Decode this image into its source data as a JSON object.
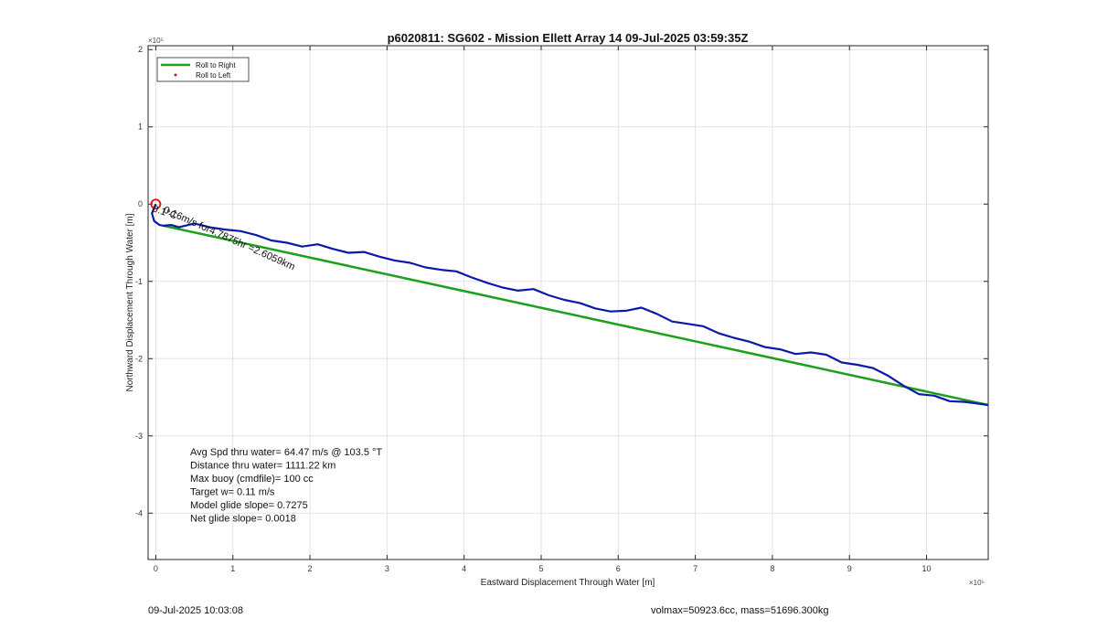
{
  "chart_data": {
    "type": "line",
    "title": "p6020811: SG602 - Mission Ellett Array 14 09-Jul-2025 03:59:35Z",
    "xlabel": "Eastward Displacement Through Water [m]",
    "ylabel": "Northward Displacement Through Water [m]",
    "xlim": [
      -0.1,
      10.8
    ],
    "ylim": [
      -4.6,
      2.05
    ],
    "axis_scale_exponent": "×10⁵",
    "x_exponent_label": "×10⁵",
    "y_exponent_label": "×10⁵",
    "x_ticks": [
      0,
      1,
      2,
      3,
      4,
      5,
      6,
      7,
      8,
      9,
      10
    ],
    "y_ticks": [
      2,
      1,
      0,
      -1,
      -2,
      -3,
      -4
    ],
    "grid": true,
    "legend_position": "top-left",
    "legend": [
      "Roll to Right",
      "Roll to Left"
    ],
    "series": [
      {
        "name": "Roll to Right",
        "color": "#1aa01a",
        "x": [
          0.1,
          10.8
        ],
        "y": [
          -0.28,
          -2.6
        ]
      },
      {
        "name": "Roll to Left",
        "color": "#e01010",
        "x": [
          0
        ],
        "y": [
          0
        ]
      },
      {
        "name": "",
        "color": "#0a1aa8",
        "x": [
          0,
          -0.05,
          -0.02,
          0.05,
          0.1,
          0.2,
          0.3,
          0.5,
          0.7,
          0.9,
          1.1,
          1.3,
          1.5,
          1.7,
          1.9,
          2.1,
          2.3,
          2.5,
          2.7,
          2.9,
          3.1,
          3.3,
          3.5,
          3.7,
          3.9,
          4.1,
          4.3,
          4.5,
          4.7,
          4.9,
          5.1,
          5.3,
          5.5,
          5.7,
          5.9,
          6.1,
          6.3,
          6.5,
          6.7,
          6.9,
          7.1,
          7.3,
          7.5,
          7.7,
          7.9,
          8.1,
          8.3,
          8.5,
          8.7,
          8.9,
          9.1,
          9.3,
          9.5,
          9.7,
          9.9,
          10.1,
          10.3,
          10.5,
          10.65,
          10.8
        ],
        "y": [
          0,
          -0.12,
          -0.22,
          -0.27,
          -0.28,
          -0.27,
          -0.3,
          -0.25,
          -0.3,
          -0.33,
          -0.35,
          -0.4,
          -0.47,
          -0.5,
          -0.55,
          -0.52,
          -0.58,
          -0.63,
          -0.62,
          -0.68,
          -0.73,
          -0.76,
          -0.82,
          -0.85,
          -0.87,
          -0.95,
          -1.02,
          -1.08,
          -1.12,
          -1.1,
          -1.18,
          -1.24,
          -1.28,
          -1.35,
          -1.39,
          -1.38,
          -1.34,
          -1.42,
          -1.52,
          -1.55,
          -1.58,
          -1.67,
          -1.73,
          -1.78,
          -1.85,
          -1.88,
          -1.94,
          -1.92,
          -1.95,
          -2.05,
          -2.08,
          -2.12,
          -2.22,
          -2.35,
          -2.46,
          -2.48,
          -2.55,
          -2.56,
          -2.58,
          -2.6
        ]
      }
    ],
    "annotations": {
      "marker_overlap_text": "0.1°C",
      "segment_label": "0.16m/s for4.7875hr =2.6059km",
      "stats": [
        "Avg Spd thru water= 64.47 m/s @ 103.5 °T",
        "Distance thru water= 1111.22 km",
        "Max buoy (cmdfile)= 100 cc",
        "Target w= 0.11 m/s",
        "Model glide slope= 0.7275",
        "Net glide slope= 0.0018"
      ]
    }
  },
  "footer": {
    "date": "09-Jul-2025 10:03:08",
    "volmax": "volmax=50923.6cc, mass=51696.300kg"
  }
}
